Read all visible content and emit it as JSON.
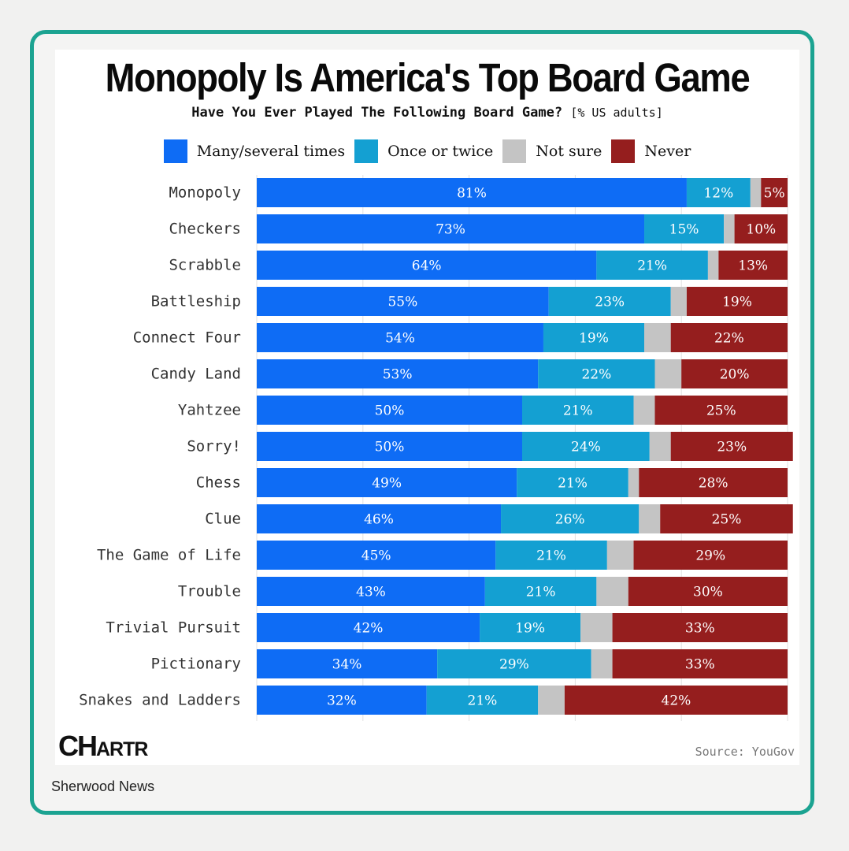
{
  "footer": {
    "publisher": "Sherwood News"
  },
  "chart_data": {
    "type": "bar",
    "orientation": "horizontal",
    "stacked": true,
    "title": "Monopoly Is America's Top Board Game",
    "subtitle": "Have You Ever Played The Following Board Game?",
    "unit_note": "[% US adults]",
    "legend_position": "top",
    "grid": true,
    "xlim": [
      0,
      100
    ],
    "categories": [
      "Monopoly",
      "Checkers",
      "Scrabble",
      "Battleship",
      "Connect Four",
      "Candy Land",
      "Yahtzee",
      "Sorry!",
      "Chess",
      "Clue",
      "The Game of Life",
      "Trouble",
      "Trivial Pursuit",
      "Pictionary",
      "Snakes and Ladders"
    ],
    "series": [
      {
        "name": "Many/several times",
        "color": "#0e6cf5",
        "values": [
          81,
          73,
          64,
          55,
          54,
          53,
          50,
          50,
          49,
          46,
          45,
          43,
          42,
          34,
          32
        ]
      },
      {
        "name": "Once or twice",
        "color": "#14a0d2",
        "values": [
          12,
          15,
          21,
          23,
          19,
          22,
          21,
          24,
          21,
          26,
          21,
          21,
          19,
          29,
          21
        ]
      },
      {
        "name": "Not sure",
        "color": "#c4c4c4",
        "values": [
          2,
          2,
          2,
          3,
          5,
          5,
          4,
          4,
          2,
          4,
          5,
          6,
          6,
          4,
          5
        ]
      },
      {
        "name": "Never",
        "color": "#951e1e",
        "values": [
          5,
          10,
          13,
          19,
          22,
          20,
          25,
          23,
          28,
          25,
          29,
          30,
          33,
          33,
          42
        ]
      }
    ],
    "value_labels": [
      [
        "81%",
        "73%",
        "64%",
        "55%",
        "54%",
        "53%",
        "50%",
        "50%",
        "49%",
        "46%",
        "45%",
        "43%",
        "42%",
        "34%",
        "32%"
      ],
      [
        "12%",
        "15%",
        "21%",
        "23%",
        "19%",
        "22%",
        "21%",
        "24%",
        "21%",
        "26%",
        "21%",
        "21%",
        "19%",
        "29%",
        "21%"
      ],
      [
        "",
        "",
        "",
        "",
        "",
        "",
        "",
        "",
        "",
        "",
        "",
        "",
        "",
        "",
        ""
      ],
      [
        "5%",
        "10%",
        "13%",
        "19%",
        "22%",
        "20%",
        "25%",
        "23%",
        "28%",
        "25%",
        "29%",
        "30%",
        "33%",
        "33%",
        "42%"
      ]
    ],
    "source": "Source: YouGov",
    "logo_text": [
      "CH",
      "ARTR"
    ]
  }
}
